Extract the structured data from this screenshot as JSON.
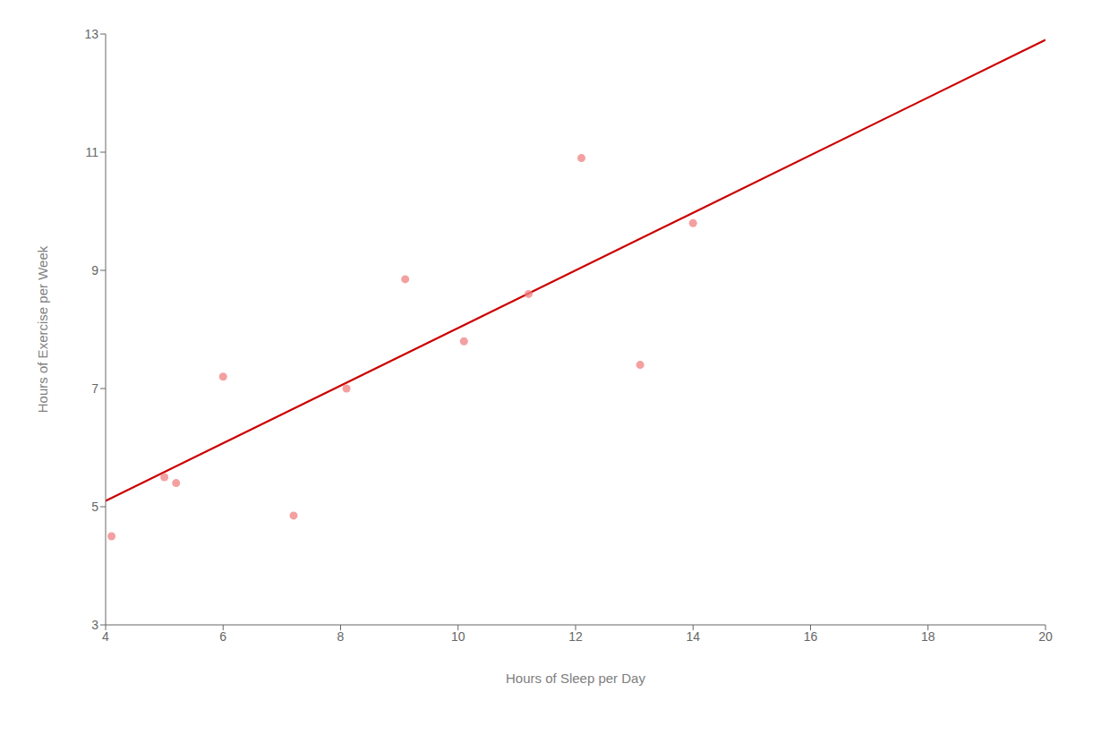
{
  "chart_data": {
    "type": "scatter",
    "xlabel": "Hours of Sleep per Day",
    "ylabel": "Hours of Exercise per Week",
    "series": [
      {
        "type": "scatter",
        "color": "#F08080",
        "x": [
          4.1,
          5.0,
          5.2,
          6.0,
          7.2,
          8.1,
          9.1,
          10.1,
          11.2,
          12.1,
          13.1,
          14.0
        ],
        "values": [
          4.5,
          5.5,
          5.4,
          7.2,
          4.85,
          7.0,
          8.85,
          7.8,
          8.6,
          10.9,
          7.4,
          9.8
        ]
      },
      {
        "type": "line",
        "color": "#CC0000",
        "x": [
          4,
          20
        ],
        "values": [
          5.1,
          12.9
        ]
      }
    ],
    "xlim": [
      4,
      20
    ],
    "ylim": [
      3,
      13
    ],
    "xticks": [
      4,
      6,
      8,
      10,
      12,
      14,
      16,
      18,
      20
    ],
    "yticks": [
      3,
      5,
      7,
      9,
      11,
      13
    ],
    "grid": false
  }
}
